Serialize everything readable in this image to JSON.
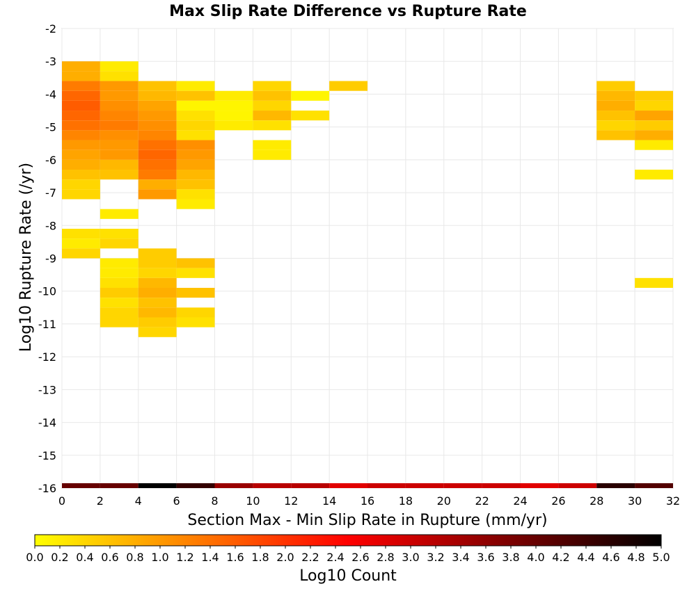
{
  "chart_data": {
    "type": "heatmap",
    "title": "Max Slip Rate Difference vs Rupture Rate",
    "xlabel": "Section Max - Min Slip Rate in Rupture (mm/yr)",
    "ylabel": "Log10 Rupture Rate (/yr)",
    "xlim": [
      0,
      32
    ],
    "ylim": [
      -16,
      -2
    ],
    "x_bin_width": 2,
    "y_bin_height": 0.3,
    "x_ticks": [
      "0",
      "2",
      "4",
      "6",
      "8",
      "10",
      "12",
      "14",
      "16",
      "18",
      "20",
      "22",
      "24",
      "26",
      "28",
      "30",
      "32"
    ],
    "y_ticks": [
      "-2",
      "-3",
      "-4",
      "-5",
      "-6",
      "-7",
      "-8",
      "-9",
      "-10",
      "-11",
      "-12",
      "-13",
      "-14",
      "-15",
      "-16"
    ],
    "grid": true,
    "colorbar": {
      "label": "Log10 Count",
      "range": [
        0,
        5
      ],
      "ticks": [
        "0.0",
        "0.2",
        "0.4",
        "0.6",
        "0.8",
        "1.0",
        "1.2",
        "1.4",
        "1.6",
        "1.8",
        "2.0",
        "2.2",
        "2.4",
        "2.6",
        "2.8",
        "3.0",
        "3.2",
        "3.4",
        "3.6",
        "3.8",
        "4.0",
        "4.2",
        "4.4",
        "4.6",
        "4.8",
        "5.0"
      ],
      "colors": [
        "#ffff00",
        "#ff8000",
        "#ff0000",
        "#800000",
        "#000000"
      ]
    },
    "cells": [
      {
        "x": 0,
        "y": -3.0,
        "v": 0.8
      },
      {
        "x": 0,
        "y": -3.3,
        "v": 0.8
      },
      {
        "x": 0,
        "y": -3.6,
        "v": 1.3
      },
      {
        "x": 0,
        "y": -3.9,
        "v": 1.5
      },
      {
        "x": 0,
        "y": -4.2,
        "v": 1.6
      },
      {
        "x": 0,
        "y": -4.5,
        "v": 1.5
      },
      {
        "x": 0,
        "y": -4.8,
        "v": 1.4
      },
      {
        "x": 0,
        "y": -5.1,
        "v": 1.2
      },
      {
        "x": 0,
        "y": -5.4,
        "v": 1.0
      },
      {
        "x": 0,
        "y": -5.7,
        "v": 0.9
      },
      {
        "x": 0,
        "y": -6.0,
        "v": 0.8
      },
      {
        "x": 0,
        "y": -6.3,
        "v": 0.6
      },
      {
        "x": 0,
        "y": -6.6,
        "v": 0.4
      },
      {
        "x": 0,
        "y": -6.9,
        "v": 0.4
      },
      {
        "x": 0,
        "y": -8.1,
        "v": 0.3
      },
      {
        "x": 0,
        "y": -8.4,
        "v": 0.2
      },
      {
        "x": 0,
        "y": -8.7,
        "v": 0.4
      },
      {
        "x": 2,
        "y": -3.0,
        "v": 0.2
      },
      {
        "x": 2,
        "y": -3.3,
        "v": 0.3
      },
      {
        "x": 2,
        "y": -3.6,
        "v": 1.0
      },
      {
        "x": 2,
        "y": -3.9,
        "v": 1.0
      },
      {
        "x": 2,
        "y": -4.2,
        "v": 1.1
      },
      {
        "x": 2,
        "y": -4.5,
        "v": 1.2
      },
      {
        "x": 2,
        "y": -4.8,
        "v": 1.3
      },
      {
        "x": 2,
        "y": -5.1,
        "v": 1.1
      },
      {
        "x": 2,
        "y": -5.4,
        "v": 1.0
      },
      {
        "x": 2,
        "y": -5.7,
        "v": 1.0
      },
      {
        "x": 2,
        "y": -6.0,
        "v": 0.7
      },
      {
        "x": 2,
        "y": -6.3,
        "v": 0.6
      },
      {
        "x": 2,
        "y": -7.5,
        "v": 0.2
      },
      {
        "x": 2,
        "y": -8.1,
        "v": 0.3
      },
      {
        "x": 2,
        "y": -8.4,
        "v": 0.4
      },
      {
        "x": 2,
        "y": -9.0,
        "v": 0.2
      },
      {
        "x": 2,
        "y": -9.3,
        "v": 0.2
      },
      {
        "x": 2,
        "y": -9.6,
        "v": 0.3
      },
      {
        "x": 2,
        "y": -9.9,
        "v": 0.5
      },
      {
        "x": 2,
        "y": -10.2,
        "v": 0.3
      },
      {
        "x": 2,
        "y": -10.5,
        "v": 0.4
      },
      {
        "x": 2,
        "y": -10.8,
        "v": 0.4
      },
      {
        "x": 4,
        "y": -3.6,
        "v": 0.6
      },
      {
        "x": 4,
        "y": -3.9,
        "v": 0.7
      },
      {
        "x": 4,
        "y": -4.2,
        "v": 0.9
      },
      {
        "x": 4,
        "y": -4.5,
        "v": 1.0
      },
      {
        "x": 4,
        "y": -4.8,
        "v": 1.1
      },
      {
        "x": 4,
        "y": -5.1,
        "v": 1.2
      },
      {
        "x": 4,
        "y": -5.4,
        "v": 1.4
      },
      {
        "x": 4,
        "y": -5.7,
        "v": 1.5
      },
      {
        "x": 4,
        "y": -6.0,
        "v": 1.4
      },
      {
        "x": 4,
        "y": -6.3,
        "v": 1.3
      },
      {
        "x": 4,
        "y": -6.6,
        "v": 0.8
      },
      {
        "x": 4,
        "y": -6.9,
        "v": 1.0
      },
      {
        "x": 4,
        "y": -8.7,
        "v": 0.5
      },
      {
        "x": 4,
        "y": -9.0,
        "v": 0.5
      },
      {
        "x": 4,
        "y": -9.3,
        "v": 0.4
      },
      {
        "x": 4,
        "y": -9.6,
        "v": 0.7
      },
      {
        "x": 4,
        "y": -9.9,
        "v": 0.8
      },
      {
        "x": 4,
        "y": -10.2,
        "v": 0.6
      },
      {
        "x": 4,
        "y": -10.5,
        "v": 0.7
      },
      {
        "x": 4,
        "y": -10.8,
        "v": 0.5
      },
      {
        "x": 4,
        "y": -11.1,
        "v": 0.4
      },
      {
        "x": 6,
        "y": -3.6,
        "v": 0.2
      },
      {
        "x": 6,
        "y": -3.9,
        "v": 0.6
      },
      {
        "x": 6,
        "y": -4.2,
        "v": 0.1
      },
      {
        "x": 6,
        "y": -4.5,
        "v": 0.3
      },
      {
        "x": 6,
        "y": -4.8,
        "v": 0.4
      },
      {
        "x": 6,
        "y": -5.1,
        "v": 0.3
      },
      {
        "x": 6,
        "y": -5.4,
        "v": 1.1
      },
      {
        "x": 6,
        "y": -5.7,
        "v": 1.0
      },
      {
        "x": 6,
        "y": -6.0,
        "v": 0.9
      },
      {
        "x": 6,
        "y": -6.3,
        "v": 0.7
      },
      {
        "x": 6,
        "y": -6.6,
        "v": 0.6
      },
      {
        "x": 6,
        "y": -6.9,
        "v": 0.3
      },
      {
        "x": 6,
        "y": -7.2,
        "v": 0.2
      },
      {
        "x": 6,
        "y": -9.0,
        "v": 0.6
      },
      {
        "x": 6,
        "y": -9.3,
        "v": 0.3
      },
      {
        "x": 6,
        "y": -9.9,
        "v": 0.6
      },
      {
        "x": 6,
        "y": -10.5,
        "v": 0.4
      },
      {
        "x": 6,
        "y": -10.8,
        "v": 0.3
      },
      {
        "x": 8,
        "y": -3.9,
        "v": 0.2
      },
      {
        "x": 8,
        "y": -4.2,
        "v": 0.1
      },
      {
        "x": 8,
        "y": -4.5,
        "v": 0.1
      },
      {
        "x": 8,
        "y": -4.8,
        "v": 0.2
      },
      {
        "x": 10,
        "y": -3.6,
        "v": 0.4
      },
      {
        "x": 10,
        "y": -3.9,
        "v": 0.6
      },
      {
        "x": 10,
        "y": -4.2,
        "v": 0.4
      },
      {
        "x": 10,
        "y": -4.5,
        "v": 0.7
      },
      {
        "x": 10,
        "y": -4.8,
        "v": 0.3
      },
      {
        "x": 10,
        "y": -5.4,
        "v": 0.2
      },
      {
        "x": 10,
        "y": -5.7,
        "v": 0.2
      },
      {
        "x": 12,
        "y": -3.9,
        "v": 0.1
      },
      {
        "x": 12,
        "y": -4.5,
        "v": 0.3
      },
      {
        "x": 14,
        "y": -3.6,
        "v": 0.5
      },
      {
        "x": 28,
        "y": -3.6,
        "v": 0.5
      },
      {
        "x": 28,
        "y": -3.9,
        "v": 0.7
      },
      {
        "x": 28,
        "y": -4.2,
        "v": 0.8
      },
      {
        "x": 28,
        "y": -4.5,
        "v": 0.6
      },
      {
        "x": 28,
        "y": -4.8,
        "v": 0.4
      },
      {
        "x": 28,
        "y": -5.1,
        "v": 0.6
      },
      {
        "x": 30,
        "y": -3.9,
        "v": 0.5
      },
      {
        "x": 30,
        "y": -4.2,
        "v": 0.4
      },
      {
        "x": 30,
        "y": -4.5,
        "v": 0.9
      },
      {
        "x": 30,
        "y": -4.8,
        "v": 0.5
      },
      {
        "x": 30,
        "y": -5.1,
        "v": 0.8
      },
      {
        "x": 30,
        "y": -5.4,
        "v": 0.2
      },
      {
        "x": 30,
        "y": -6.3,
        "v": 0.2
      },
      {
        "x": 30,
        "y": -9.6,
        "v": 0.3
      }
    ],
    "bottom_row": {
      "y": -16,
      "values": [
        4.0,
        4.0,
        5.0,
        4.5,
        3.5,
        3.2,
        3.2,
        2.8,
        3.0,
        3.0,
        3.0,
        3.0,
        2.8,
        3.0,
        4.6,
        4.2
      ]
    }
  }
}
